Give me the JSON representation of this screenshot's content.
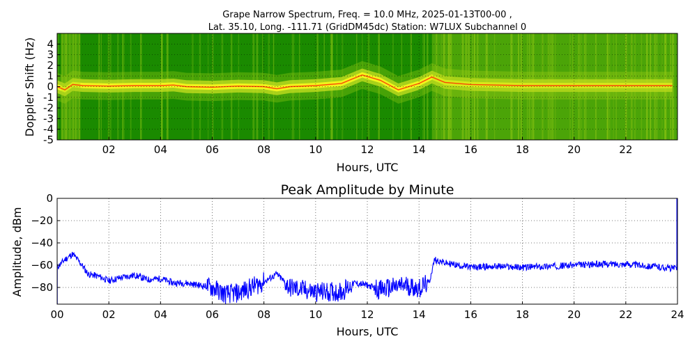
{
  "figure": {
    "title_line1": "Grape Narrow Spectrum, Freq. = 10.0 MHz, 2025-01-13T00-00 ,",
    "title_line2": "Lat.  35.10, Long. -111.71 (GridDM45dc) Station: W7LUX Subchannel 0"
  },
  "chart_data": [
    {
      "type": "heatmap",
      "title": "",
      "xlabel": "Hours, UTC",
      "ylabel": "Doppler Shift (Hz)",
      "xlim": [
        0,
        24
      ],
      "ylim": [
        -5,
        5
      ],
      "x_ticks": [
        {
          "v": 2,
          "label": "02"
        },
        {
          "v": 4,
          "label": "04"
        },
        {
          "v": 6,
          "label": "06"
        },
        {
          "v": 8,
          "label": "08"
        },
        {
          "v": 10,
          "label": "10"
        },
        {
          "v": 12,
          "label": "12"
        },
        {
          "v": 14,
          "label": "14"
        },
        {
          "v": 16,
          "label": "16"
        },
        {
          "v": 18,
          "label": "18"
        },
        {
          "v": 20,
          "label": "20"
        },
        {
          "v": 22,
          "label": "22"
        }
      ],
      "y_ticks": [
        {
          "v": 4,
          "label": "4"
        },
        {
          "v": 3,
          "label": "3"
        },
        {
          "v": 2,
          "label": "2"
        },
        {
          "v": 1,
          "label": "1"
        },
        {
          "v": 0,
          "label": "0"
        },
        {
          "v": -1,
          "label": "-1"
        },
        {
          "v": -2,
          "label": "-2"
        },
        {
          "v": -3,
          "label": "-3"
        },
        {
          "v": -4,
          "label": "-4"
        },
        {
          "v": -5,
          "label": "-5"
        }
      ],
      "grid": true,
      "colors": {
        "background": "#1a8a00",
        "mid": "#7fbf10",
        "high": "#f4f41e",
        "peak": "#ff2a00"
      },
      "doppler_trace": {
        "hours": [
          0,
          0.3,
          0.6,
          1,
          2,
          3,
          4,
          4.5,
          5,
          6,
          7,
          8,
          8.5,
          9,
          10,
          11,
          11.8,
          12.5,
          13.2,
          14,
          14.5,
          15,
          16,
          18,
          20,
          22,
          23.8
        ],
        "hz": [
          0,
          -0.3,
          0.2,
          0.1,
          0.05,
          0.1,
          0.1,
          0.15,
          0,
          -0.05,
          0.05,
          0,
          -0.2,
          0,
          0.1,
          0.3,
          1.1,
          0.6,
          -0.3,
          0.3,
          0.9,
          0.4,
          0.2,
          0.1,
          0.1,
          0.1,
          0.1
        ]
      }
    },
    {
      "type": "line",
      "title": "Peak Amplitude by Minute",
      "xlabel": "Hours, UTC",
      "ylabel": "Amplitude, dBm",
      "xlim": [
        0,
        24
      ],
      "ylim": [
        -95,
        0
      ],
      "x_ticks": [
        {
          "v": 0,
          "label": "00"
        },
        {
          "v": 2,
          "label": "02"
        },
        {
          "v": 4,
          "label": "04"
        },
        {
          "v": 6,
          "label": "06"
        },
        {
          "v": 8,
          "label": "08"
        },
        {
          "v": 10,
          "label": "10"
        },
        {
          "v": 12,
          "label": "12"
        },
        {
          "v": 14,
          "label": "14"
        },
        {
          "v": 16,
          "label": "16"
        },
        {
          "v": 18,
          "label": "18"
        },
        {
          "v": 20,
          "label": "20"
        },
        {
          "v": 22,
          "label": "22"
        },
        {
          "v": 24,
          "label": "24"
        }
      ],
      "y_ticks": [
        {
          "v": 0,
          "label": "0"
        },
        {
          "v": -20,
          "label": "−20"
        },
        {
          "v": -40,
          "label": "−40"
        },
        {
          "v": -60,
          "label": "−60"
        },
        {
          "v": -80,
          "label": "−80"
        }
      ],
      "grid": true,
      "line_color": "#0000ff",
      "series": [
        {
          "x": [
            0,
            0.3,
            0.6,
            0.9,
            1.2,
            1.6,
            2,
            2.5,
            3,
            3.5,
            4,
            4.5,
            5,
            5.5,
            6,
            6.5,
            7,
            7.5,
            8,
            8.5,
            9,
            9.5,
            10,
            10.5,
            11,
            11.5,
            12,
            12.5,
            13,
            13.5,
            14,
            14.4,
            14.6,
            15,
            15.5,
            16,
            17,
            18,
            19,
            20,
            21,
            22,
            23,
            23.9
          ],
          "y": [
            -62,
            -55,
            -50,
            -58,
            -68,
            -70,
            -74,
            -71,
            -69,
            -73,
            -72,
            -76,
            -76,
            -78,
            -80,
            -86,
            -85,
            -80,
            -75,
            -68,
            -80,
            -82,
            -84,
            -84,
            -84,
            -76,
            -78,
            -82,
            -80,
            -78,
            -81,
            -75,
            -55,
            -58,
            -60,
            -62,
            -61,
            -62,
            -61,
            -60,
            -59,
            -59,
            -61,
            -63
          ]
        }
      ]
    }
  ]
}
